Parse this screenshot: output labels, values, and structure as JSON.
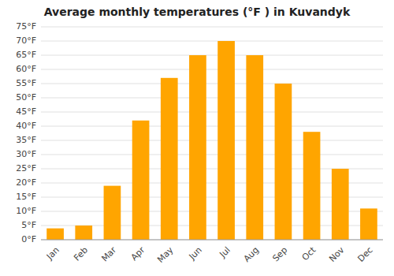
{
  "chart_data": {
    "type": "bar",
    "title": "Average monthly temperatures (°F ) in Kuvandyk",
    "categories": [
      "Jan",
      "Feb",
      "Mar",
      "Apr",
      "May",
      "Jun",
      "Jul",
      "Aug",
      "Sep",
      "Oct",
      "Nov",
      "Dec"
    ],
    "values": [
      4,
      5,
      19,
      42,
      57,
      65,
      70,
      65,
      55,
      38,
      25,
      11
    ],
    "color": "#FFA500",
    "ylim": [
      0,
      75
    ],
    "yticks": [
      {
        "value": 0,
        "label": "0°F"
      },
      {
        "value": 5,
        "label": "5°F"
      },
      {
        "value": 10,
        "label": "10°F"
      },
      {
        "value": 15,
        "label": "15°F"
      },
      {
        "value": 20,
        "label": "20°F"
      },
      {
        "value": 25,
        "label": "25°F"
      },
      {
        "value": 30,
        "label": "30°F"
      },
      {
        "value": 35,
        "label": "35°F"
      },
      {
        "value": 40,
        "label": "40°F"
      },
      {
        "value": 45,
        "label": "45°F"
      },
      {
        "value": 50,
        "label": "50°F"
      },
      {
        "value": 55,
        "label": "55°F"
      },
      {
        "value": 60,
        "label": "60°F"
      },
      {
        "value": 65,
        "label": "65°F"
      },
      {
        "value": 70,
        "label": "70°F"
      },
      {
        "value": 75,
        "label": "75°F"
      }
    ],
    "grid": true
  }
}
